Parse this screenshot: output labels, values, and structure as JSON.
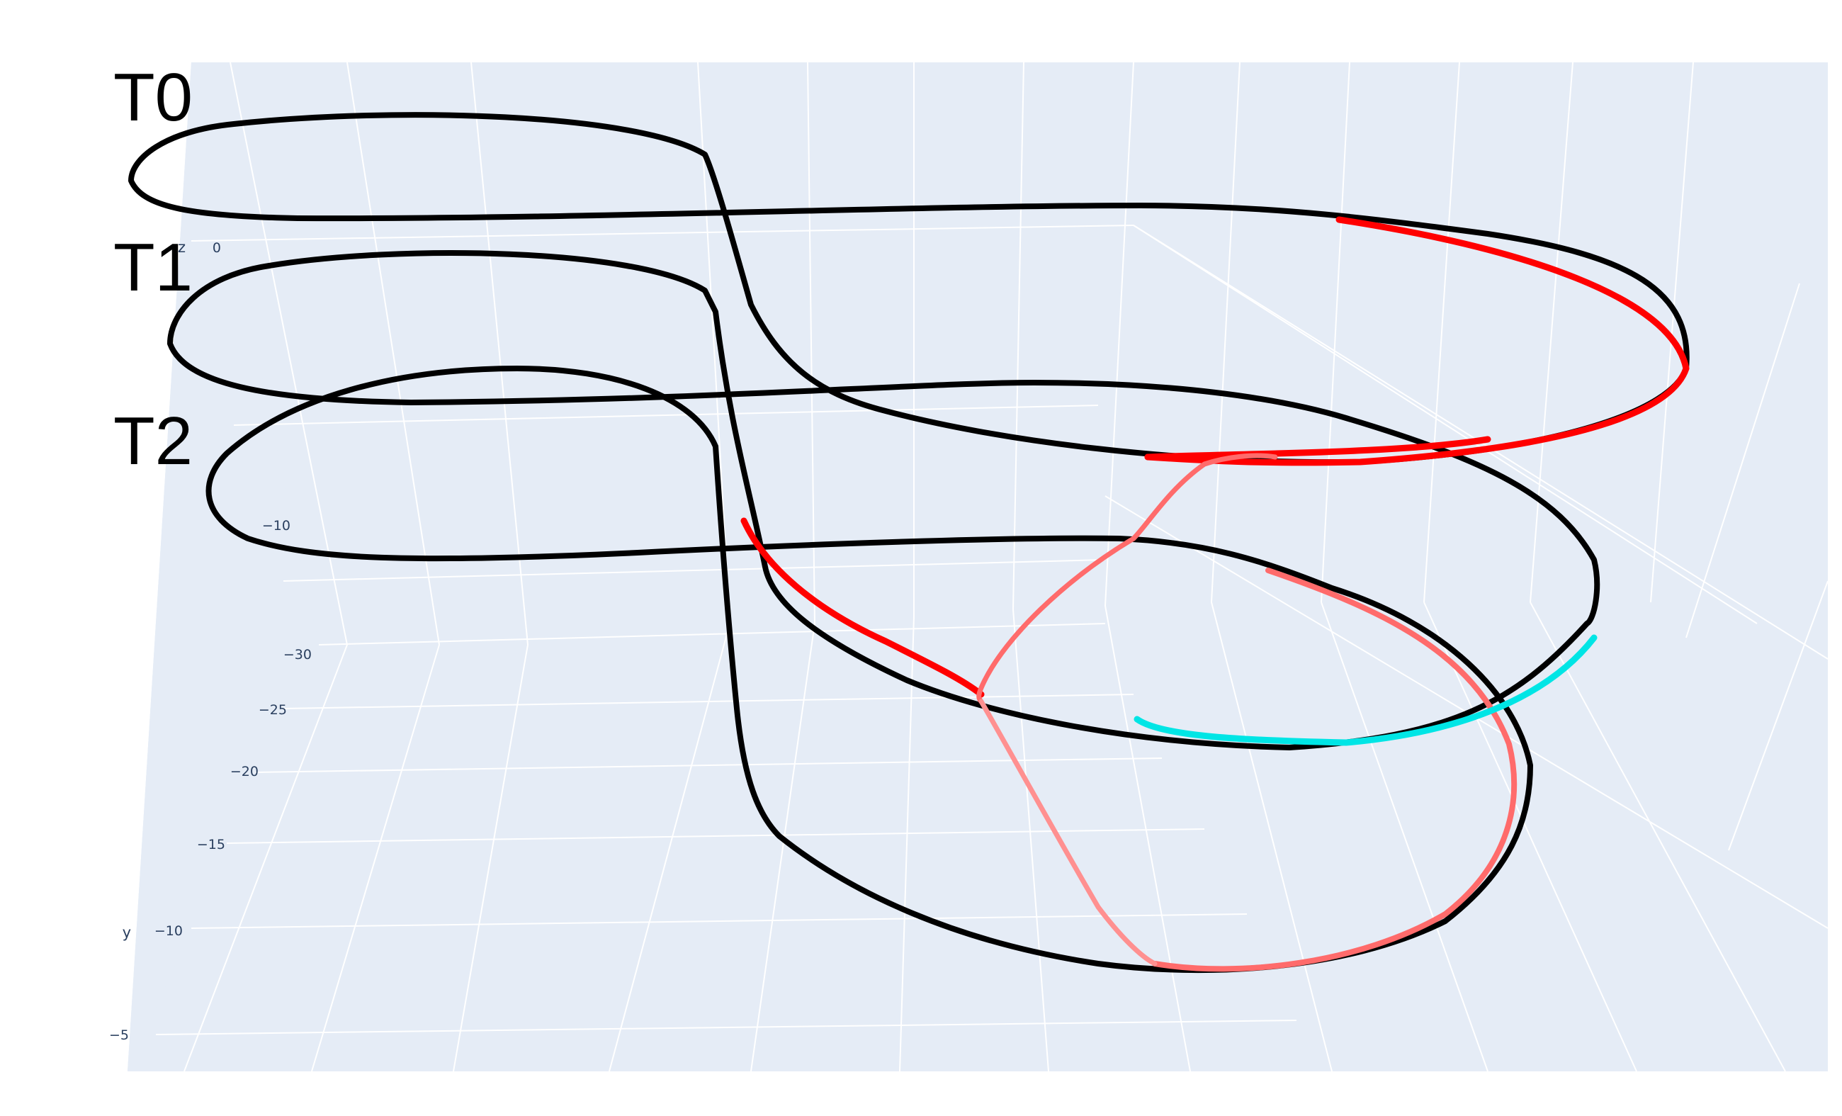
{
  "chart_data": {
    "type": "line",
    "projection": "3d",
    "labels": [
      "T0",
      "T1",
      "T2"
    ],
    "axes": {
      "z": {
        "title": "z",
        "ticks": [
          "0",
          "−10"
        ]
      },
      "y": {
        "title": "y",
        "ticks": [
          "−30",
          "−25",
          "−20",
          "−15",
          "−10",
          "−5"
        ]
      }
    },
    "grid": true,
    "colors": {
      "background": "#e5ecf6",
      "gridline": "#ffffff",
      "trajectory": "#000000",
      "red_segment": "#ff0000",
      "pink_segment": "#ff6b6b",
      "light_pink_segment": "#ff9090",
      "cyan_segment": "#00e5e5"
    },
    "series": [
      {
        "color": "red",
        "on": "T0 and T1 loops",
        "linestyle": "jagged"
      },
      {
        "color": "red",
        "on": "T1 to T2 loops",
        "linestyle": "jagged"
      },
      {
        "color": "cyan",
        "on": "T1 loop",
        "linestyle": "solid"
      },
      {
        "color": "pink",
        "on": "connector",
        "linestyle": "solid"
      }
    ]
  }
}
